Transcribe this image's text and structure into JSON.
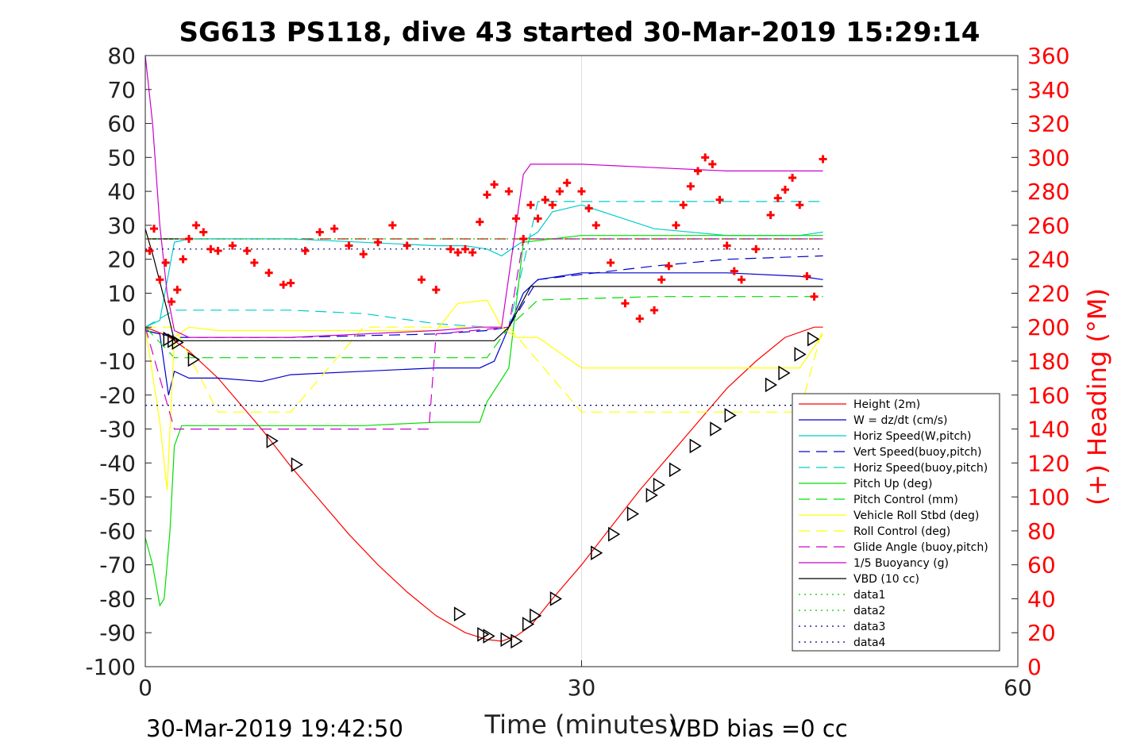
{
  "chart_data": {
    "type": "line",
    "title": "SG613 PS118, dive 43 started 30-Mar-2019 15:29:14",
    "xlabel": "Time (minutes)",
    "ylabel_right": "(+) Heading (°M)",
    "xlim": [
      0,
      60
    ],
    "ylim": [
      -100,
      80
    ],
    "y2lim": [
      0,
      360
    ],
    "x_ticks": [
      "0",
      "30",
      "60"
    ],
    "y_ticks": [
      "80",
      "70",
      "60",
      "50",
      "40",
      "30",
      "20",
      "10",
      "0",
      "-10",
      "-20",
      "-30",
      "-40",
      "-50",
      "-60",
      "-70",
      "-80",
      "-90",
      "-100"
    ],
    "y2_ticks": [
      "360",
      "340",
      "320",
      "300",
      "280",
      "260",
      "240",
      "220",
      "200",
      "180",
      "160",
      "140",
      "120",
      "100",
      "80",
      "60",
      "40",
      "20",
      "0"
    ],
    "grid": "x at 30 only",
    "legend_position": "bottom-right",
    "footer_left": "30-Mar-2019 19:42:50",
    "footer_right": "VBD bias =0 cc",
    "series": [
      {
        "name": "Height (2m)",
        "color": "#ff0000",
        "style": "solid",
        "x": [
          0,
          1.5,
          3,
          5,
          8,
          10,
          12,
          14,
          16,
          18,
          20,
          22,
          23.5,
          24.5,
          25.5,
          26.5,
          28,
          30,
          32,
          34,
          36,
          38,
          40,
          42,
          44,
          46,
          46.6
        ],
        "y": [
          0,
          -2.5,
          -7,
          -15,
          -30,
          -41,
          -51,
          -61,
          -70,
          -78,
          -85,
          -90,
          -92,
          -92.5,
          -91,
          -88,
          -80,
          -70,
          -59,
          -48,
          -38,
          -28,
          -18,
          -10,
          -3,
          0,
          0
        ]
      },
      {
        "name": "W = dz/dt (cm/s)",
        "color": "#0000cc",
        "style": "solid",
        "x": [
          0,
          1,
          1.6,
          2,
          3,
          5,
          8,
          10,
          15,
          20,
          23,
          24,
          25,
          26,
          27,
          30,
          35,
          40,
          45,
          46.6
        ],
        "y": [
          -1,
          -2,
          -20,
          -13,
          -15,
          -15,
          -16,
          -14,
          -13,
          -12,
          -12,
          -10,
          0,
          10,
          14,
          16,
          16,
          16,
          15,
          14
        ]
      },
      {
        "name": "Horiz Speed(W,pitch)",
        "color": "#00cccc",
        "style": "solid",
        "x": [
          0,
          1,
          2,
          3,
          6,
          10,
          15,
          20,
          22,
          23.5,
          24.5,
          25.5,
          27,
          28,
          30,
          35,
          40,
          45,
          46.6
        ],
        "y": [
          0,
          2,
          25,
          26,
          26,
          26,
          25,
          24,
          24,
          23,
          21,
          24,
          28,
          34,
          36,
          29,
          27,
          27,
          28
        ]
      },
      {
        "name": "Vert Speed(buoy,pitch)",
        "color": "#0000cc",
        "style": "dashed",
        "x": [
          0,
          2,
          10,
          20,
          23.5,
          25,
          27,
          35,
          40,
          46.6
        ],
        "y": [
          -1,
          -3,
          -3,
          -2,
          -1,
          0,
          14,
          18,
          20,
          21
        ]
      },
      {
        "name": "Horiz Speed(buoy,pitch)",
        "color": "#00cccc",
        "style": "dashed",
        "x": [
          0,
          2,
          10,
          15,
          20,
          23.5,
          25,
          27,
          35,
          46.6
        ],
        "y": [
          0,
          5,
          5,
          4,
          1,
          0,
          0,
          37,
          37,
          37
        ]
      },
      {
        "name": "Pitch Up (deg)",
        "color": "#00dd00",
        "style": "solid",
        "x": [
          0,
          0.5,
          1,
          1.3,
          1.7,
          2,
          2.5,
          3,
          5,
          10,
          15,
          20,
          23,
          23.5,
          25,
          26,
          30,
          40,
          46.6
        ],
        "y": [
          -62,
          -70,
          -82,
          -80,
          -60,
          -35,
          -29,
          -29,
          -29,
          -29,
          -29,
          -28,
          -28,
          -22,
          -12,
          25,
          27,
          27,
          27
        ]
      },
      {
        "name": "Pitch Control (mm)",
        "color": "#00dd00",
        "style": "dashed",
        "x": [
          0,
          2,
          10,
          20,
          23.5,
          25,
          27,
          35,
          46.6
        ],
        "y": [
          0,
          -9,
          -9,
          -9,
          -9,
          0,
          8,
          9,
          9
        ]
      },
      {
        "name": "Vehicle Roll Stbd (deg)",
        "color": "#ffff00",
        "style": "solid",
        "x": [
          0,
          1,
          1.5,
          2,
          3,
          5,
          10,
          15,
          20,
          21.5,
          23.5,
          24.5,
          25.5,
          27,
          30,
          35,
          40,
          45,
          46.6
        ],
        "y": [
          0,
          -28,
          -48,
          -3,
          0,
          -1,
          -1,
          -1,
          -1,
          7,
          8,
          0,
          -3,
          -3,
          -12,
          -12,
          -12,
          -12,
          -2
        ]
      },
      {
        "name": "Roll Control (deg)",
        "color": "#ffff00",
        "style": "dashed",
        "x": [
          0,
          2,
          5,
          10,
          15,
          20,
          23.5,
          25,
          30,
          35,
          40,
          45,
          46.6
        ],
        "y": [
          0,
          0,
          -25,
          -25,
          0,
          0,
          0,
          0,
          -25,
          -25,
          -25,
          -25,
          0
        ]
      },
      {
        "name": "Glide Angle (buoy,pitch)",
        "color": "#cc00cc",
        "style": "dashed",
        "x": [
          0,
          2,
          10,
          19.5,
          20,
          25,
          26,
          35,
          46.6
        ],
        "y": [
          0,
          -30,
          -30,
          -30,
          -2,
          0,
          26,
          26,
          26
        ]
      },
      {
        "name": "1/5 Buoyancy (g)",
        "color": "#cc00cc",
        "style": "solid",
        "x": [
          0,
          0.5,
          1,
          1.5,
          2,
          3,
          10,
          15,
          20,
          23,
          24.5,
          26,
          26.5,
          30,
          35,
          40,
          46.6
        ],
        "y": [
          80,
          60,
          30,
          10,
          -1,
          -3,
          -3,
          -2,
          -1,
          0,
          0,
          45,
          48,
          48,
          47,
          46,
          46
        ]
      },
      {
        "name": "VBD (10 cc)",
        "color": "#000000",
        "style": "solid",
        "x": [
          0,
          0.6,
          1.5,
          2,
          10,
          23,
          24,
          25,
          26.5,
          30,
          40,
          46.6
        ],
        "y": [
          29,
          20,
          5,
          -4,
          -4,
          -4,
          -4,
          0,
          12,
          12,
          12,
          12
        ]
      },
      {
        "name": "data1",
        "color": "#00cc00",
        "style": "dotted",
        "x": [
          0,
          46.6
        ],
        "y": [
          26,
          26
        ]
      },
      {
        "name": "data2",
        "color": "#00cc00",
        "style": "dotted",
        "x": [
          0,
          46.6
        ],
        "y": [
          -23,
          -23
        ]
      },
      {
        "name": "data3",
        "color": "#000080",
        "style": "dotted",
        "x": [
          0,
          46.6
        ],
        "y": [
          23,
          23
        ]
      },
      {
        "name": "data4",
        "color": "#000080",
        "style": "dotted",
        "x": [
          0,
          46.6
        ],
        "y": [
          -23,
          -23
        ]
      }
    ],
    "extra_lines": [
      {
        "color": "#cc0000",
        "style": "dashed",
        "x": [
          0,
          46.6
        ],
        "y": [
          26,
          26
        ]
      },
      {
        "color": "#000000",
        "style": "solid",
        "x": [
          0.3,
          2.3
        ],
        "y": [
          26,
          26
        ]
      }
    ],
    "heading_series": {
      "color": "#ff0000",
      "marker": "+",
      "x": [
        0.3,
        0.6,
        1,
        1.4,
        1.8,
        2.2,
        2.6,
        3,
        3.5,
        4,
        4.5,
        5,
        6,
        7,
        7.5,
        8.5,
        9.5,
        10,
        11,
        12,
        13,
        14,
        15,
        16,
        17,
        18,
        19,
        20,
        21,
        21.5,
        22,
        22.5,
        23,
        23.5,
        24,
        25,
        25.5,
        26,
        26.5,
        27,
        27.5,
        28,
        28.5,
        29,
        30,
        30.5,
        31,
        32,
        33,
        34,
        35,
        35.5,
        36,
        36.5,
        37,
        37.5,
        38,
        38.5,
        39,
        39.5,
        40,
        40.5,
        41,
        42,
        43,
        43.5,
        44,
        44.5,
        45,
        45.5,
        46,
        46.6
      ],
      "y": [
        245,
        258,
        228,
        238,
        215,
        222,
        240,
        252,
        260,
        256,
        246,
        245,
        248,
        245,
        238,
        232,
        225,
        226,
        245,
        256,
        258,
        248,
        243,
        250,
        260,
        248,
        228,
        222,
        246,
        244,
        246,
        244,
        262,
        278,
        284,
        280,
        264,
        252,
        272,
        264,
        275,
        272,
        280,
        285,
        280,
        270,
        260,
        238,
        214,
        205,
        210,
        228,
        236,
        260,
        272,
        283,
        292,
        300,
        296,
        275,
        248,
        233,
        228,
        246,
        266,
        276,
        281,
        288,
        272,
        230,
        218,
        299
      ]
    },
    "triangle_markers": {
      "x": [
        1.6,
        1.9,
        2.2,
        3.3,
        8.7,
        10.4,
        21.6,
        23.2,
        23.6,
        24.8,
        25.5,
        26.3,
        26.8,
        28.2,
        31,
        32.2,
        33.5,
        34.8,
        35.3,
        36.4,
        37.8,
        39.2,
        40.2,
        43,
        43.9,
        45,
        45.9
      ],
      "y": [
        -3.5,
        -4,
        -4.5,
        -9.5,
        -33.5,
        -40.5,
        -84.5,
        -90.5,
        -91,
        -92,
        -92.5,
        -87.5,
        -85,
        -80,
        -66.5,
        -61,
        -55,
        -49.5,
        -46.5,
        -42,
        -35,
        -30,
        -26,
        -17,
        -13.5,
        -8,
        -3.5
      ]
    }
  }
}
